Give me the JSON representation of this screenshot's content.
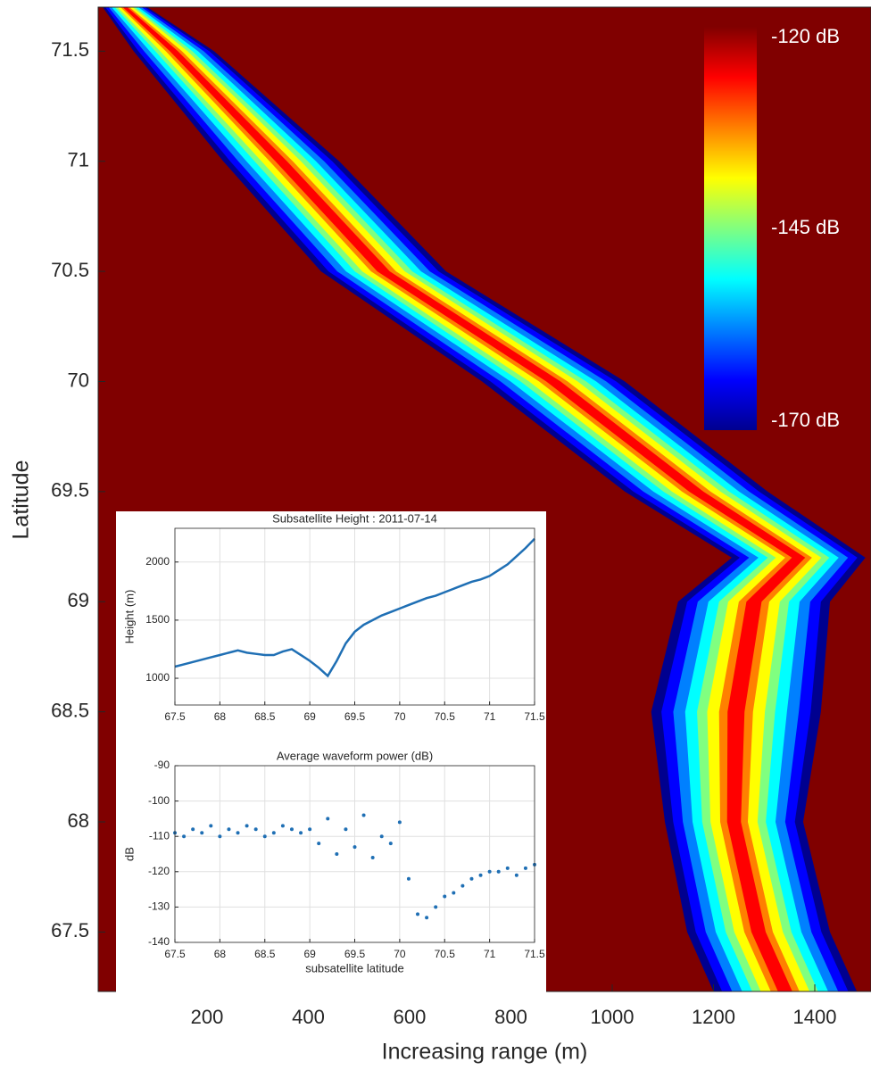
{
  "chart_data": [
    {
      "type": "heatmap",
      "xlabel": "Increasing range (m)",
      "ylabel": "Latitude",
      "xlim": [
        -15,
        1511
      ],
      "ylim": [
        67.23,
        71.7
      ],
      "xticks": [
        200,
        400,
        600,
        800,
        1000,
        1200,
        1400
      ],
      "yticks": [
        67.5,
        68,
        68.5,
        69,
        69.5,
        70,
        70.5,
        71,
        71.5
      ],
      "background": "#800000",
      "swath": {
        "latitude": [
          71.7,
          71.5,
          71,
          70.5,
          70,
          69.5,
          69.2,
          69,
          68.5,
          68,
          67.5,
          67.23
        ],
        "range_left": [
          -6,
          55,
          232,
          425,
          743,
          1025,
          1236,
          1130,
          1077,
          1104,
          1148,
          1200
        ],
        "range_right": [
          82,
          214,
          461,
          672,
          1025,
          1307,
          1500,
          1430,
          1412,
          1377,
          1430,
          1483
        ]
      },
      "colorbar": {
        "clim": [
          -170,
          -120
        ],
        "ticks": [
          {
            "value": -120,
            "label": "-120 dB"
          },
          {
            "value": -145,
            "label": "-145 dB"
          },
          {
            "value": -170,
            "label": "-170 dB"
          }
        ],
        "colors": [
          "#00008f",
          "#0000ff",
          "#0080ff",
          "#00ffff",
          "#80ff80",
          "#ffff00",
          "#ff8000",
          "#ff0000",
          "#800000"
        ]
      }
    },
    {
      "type": "line",
      "title": "Subsatellite Height  : 2011-07-14",
      "ylabel": "Height (m)",
      "color": "#1f6fb4",
      "xlim": [
        67.5,
        71.5
      ],
      "ylim": [
        770,
        2290
      ],
      "xticks": [
        67.5,
        68,
        68.5,
        69,
        69.5,
        70,
        70.5,
        71,
        71.5
      ],
      "yticks": [
        1000,
        1500,
        2000
      ],
      "grid": true,
      "x": [
        67.5,
        67.6,
        67.7,
        67.8,
        67.9,
        68,
        68.1,
        68.2,
        68.3,
        68.4,
        68.5,
        68.6,
        68.7,
        68.8,
        68.9,
        69,
        69.1,
        69.2,
        69.3,
        69.4,
        69.5,
        69.6,
        69.7,
        69.8,
        69.9,
        70,
        70.1,
        70.2,
        70.3,
        70.4,
        70.5,
        70.6,
        70.7,
        70.8,
        70.9,
        71,
        71.1,
        71.2,
        71.3,
        71.4,
        71.5
      ],
      "values": [
        1100,
        1120,
        1140,
        1160,
        1180,
        1200,
        1220,
        1240,
        1220,
        1210,
        1200,
        1200,
        1230,
        1250,
        1200,
        1150,
        1090,
        1020,
        1150,
        1300,
        1400,
        1460,
        1500,
        1540,
        1570,
        1600,
        1630,
        1660,
        1690,
        1710,
        1740,
        1770,
        1800,
        1830,
        1850,
        1880,
        1930,
        1980,
        2050,
        2120,
        2200
      ]
    },
    {
      "type": "scatter",
      "title": "Average waveform power (dB)",
      "ylabel": "dB",
      "xlabel": "subsatellite latitude",
      "color": "#1f6fb4",
      "xlim": [
        67.5,
        71.5
      ],
      "ylim": [
        -140,
        -90
      ],
      "xticks": [
        67.5,
        68,
        68.5,
        69,
        69.5,
        70,
        70.5,
        71,
        71.5
      ],
      "yticks": [
        -140,
        -130,
        -120,
        -110,
        -100,
        -90
      ],
      "grid": true,
      "x": [
        67.5,
        67.6,
        67.7,
        67.8,
        67.9,
        68,
        68.1,
        68.2,
        68.3,
        68.4,
        68.5,
        68.6,
        68.7,
        68.8,
        68.9,
        69,
        69.1,
        69.2,
        69.3,
        69.4,
        69.5,
        69.6,
        69.7,
        69.8,
        69.9,
        70,
        70.1,
        70.2,
        70.3,
        70.4,
        70.5,
        70.6,
        70.7,
        70.8,
        70.9,
        71,
        71.1,
        71.2,
        71.3,
        71.4,
        71.5
      ],
      "values": [
        -109,
        -110,
        -108,
        -109,
        -107,
        -110,
        -108,
        -109,
        -107,
        -108,
        -110,
        -109,
        -107,
        -108,
        -109,
        -108,
        -112,
        -105,
        -115,
        -108,
        -113,
        -104,
        -116,
        -110,
        -112,
        -106,
        -122,
        -132,
        -133,
        -130,
        -127,
        -126,
        -124,
        -122,
        -121,
        -120,
        -120,
        -119,
        -121,
        -119,
        -118
      ]
    }
  ]
}
